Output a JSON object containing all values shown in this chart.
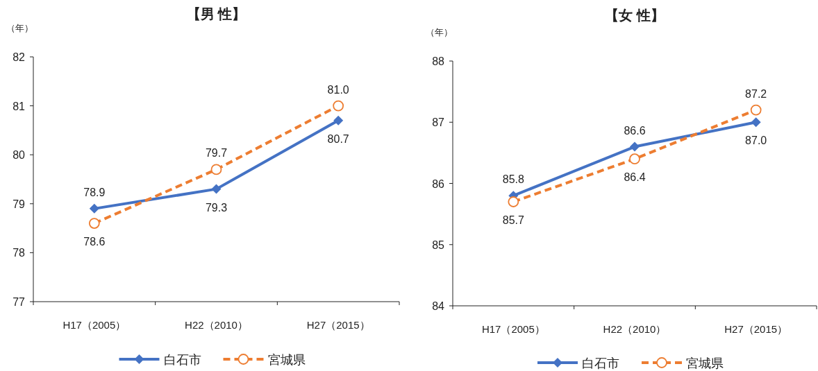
{
  "chart_data": [
    {
      "type": "line",
      "title": "【男 性】",
      "ylabel": "（年）",
      "categories": [
        "H17（2005）",
        "H22（2010）",
        "H27（2015）"
      ],
      "ylim": [
        77,
        82
      ],
      "yticks": [
        77,
        78,
        79,
        80,
        81,
        82
      ],
      "grid": false,
      "legend": "bottom",
      "series": [
        {
          "name": "白石市",
          "color": "#4472c4",
          "marker": "diamond",
          "line_style": "solid",
          "values": [
            78.9,
            79.3,
            80.7
          ],
          "value_labels": [
            "78.9",
            "79.3",
            "80.7"
          ]
        },
        {
          "name": "宮城県",
          "color": "#ed7d31",
          "marker": "circle",
          "line_style": "dashed",
          "values": [
            78.6,
            79.7,
            81.0
          ],
          "value_labels": [
            "78.6",
            "79.7",
            "81.0"
          ]
        }
      ]
    },
    {
      "type": "line",
      "title": "【女 性】",
      "ylabel": "（年）",
      "categories": [
        "H17（2005）",
        "H22（2010）",
        "H27（2015）"
      ],
      "ylim": [
        84,
        88
      ],
      "yticks": [
        84,
        85,
        86,
        87,
        88
      ],
      "grid": false,
      "legend": "bottom",
      "series": [
        {
          "name": "白石市",
          "color": "#4472c4",
          "marker": "diamond",
          "line_style": "solid",
          "values": [
            85.8,
            86.6,
            87.0
          ],
          "value_labels": [
            "85.8",
            "86.6",
            "87.0"
          ]
        },
        {
          "name": "宮城県",
          "color": "#ed7d31",
          "marker": "circle",
          "line_style": "dashed",
          "values": [
            85.7,
            86.4,
            87.2
          ],
          "value_labels": [
            "85.7",
            "86.4",
            "87.2"
          ]
        }
      ]
    }
  ]
}
